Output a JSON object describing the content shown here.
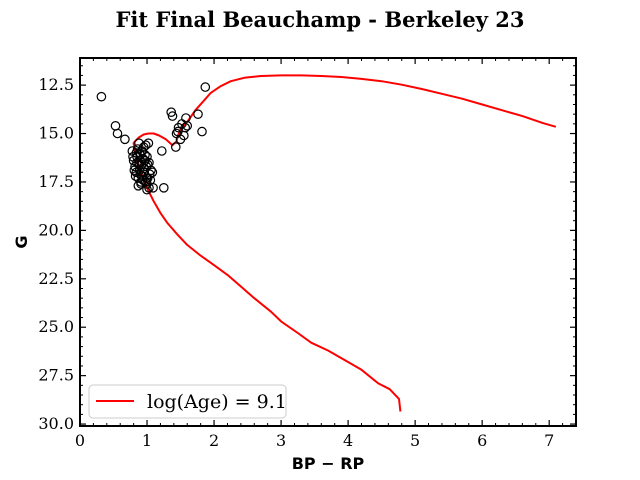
{
  "chart_data": {
    "type": "scatter",
    "title": "Fit Final Beauchamp - Berkeley 23",
    "xlabel": "BP − RP",
    "ylabel": "G",
    "xlim": [
      0,
      7.4
    ],
    "ylim": [
      30.1,
      11.1
    ],
    "y_inverted": true,
    "xticks": [
      0,
      1,
      2,
      3,
      4,
      5,
      6,
      7
    ],
    "xtick_labels": [
      "0",
      "1",
      "2",
      "3",
      "4",
      "5",
      "6",
      "7"
    ],
    "yticks": [
      12.5,
      15.0,
      17.5,
      20.0,
      22.5,
      25.0,
      27.5,
      30.0
    ],
    "ytick_labels": [
      "12.5",
      "15.0",
      "17.5",
      "20.0",
      "22.5",
      "25.0",
      "27.5",
      "30.0"
    ],
    "legend_position": "lower-left",
    "series": [
      {
        "name": "log(Age) = 9.1",
        "kind": "line",
        "color": "#ff0000",
        "x": [
          4.78,
          4.76,
          4.62,
          4.45,
          4.2,
          3.95,
          3.7,
          3.45,
          3.25,
          3.0,
          2.85,
          2.6,
          2.4,
          2.2,
          2.0,
          1.8,
          1.6,
          1.45,
          1.3,
          1.2,
          1.1,
          1.0,
          0.92,
          0.86,
          0.82,
          0.8,
          0.82,
          0.88,
          0.95,
          1.02,
          1.1,
          1.18,
          1.28,
          1.38,
          1.44,
          1.46,
          1.5,
          1.55,
          1.62,
          1.72,
          1.85,
          1.95,
          2.1,
          2.25,
          2.45,
          2.7,
          3.0,
          3.3,
          3.6,
          3.9,
          4.2,
          4.5,
          4.8,
          5.1,
          5.4,
          5.7,
          6.0,
          6.3,
          6.6,
          6.9,
          7.1
        ],
        "y": [
          29.35,
          28.7,
          28.2,
          27.9,
          27.2,
          26.7,
          26.2,
          25.8,
          25.3,
          24.7,
          24.2,
          23.5,
          22.9,
          22.3,
          21.8,
          21.3,
          20.75,
          20.2,
          19.6,
          19.1,
          18.5,
          17.8,
          17.1,
          16.4,
          15.8,
          15.5,
          15.4,
          15.2,
          15.05,
          15.0,
          15.0,
          15.1,
          15.3,
          15.6,
          15.4,
          15.1,
          14.8,
          14.6,
          14.3,
          13.8,
          13.3,
          12.9,
          12.55,
          12.3,
          12.12,
          12.03,
          12.0,
          12.0,
          12.03,
          12.08,
          12.18,
          12.3,
          12.48,
          12.7,
          12.95,
          13.2,
          13.5,
          13.8,
          14.1,
          14.45,
          14.65
        ]
      },
      {
        "name": "",
        "kind": "scatter",
        "marker": "open-circle",
        "color": "#000000",
        "x": [
          0.32,
          0.53,
          0.56,
          0.67,
          0.78,
          0.8,
          0.82,
          0.84,
          0.85,
          0.86,
          0.87,
          0.88,
          0.88,
          0.89,
          0.9,
          0.9,
          0.91,
          0.92,
          0.92,
          0.93,
          0.94,
          0.94,
          0.95,
          0.96,
          0.96,
          0.97,
          0.98,
          0.98,
          0.99,
          1.0,
          1.0,
          1.01,
          1.02,
          1.03,
          1.04,
          1.05,
          1.06,
          0.79,
          0.81,
          0.83,
          0.85,
          0.87,
          0.89,
          0.91,
          0.93,
          0.95,
          0.97,
          0.99,
          1.01,
          1.03,
          0.84,
          0.88,
          0.92,
          0.96,
          1.0,
          1.08,
          1.09,
          1.22,
          1.25,
          1.36,
          1.38,
          1.43,
          1.44,
          1.46,
          1.47,
          1.5,
          1.52,
          1.55,
          1.57,
          1.58,
          1.6,
          1.76,
          1.82,
          1.87
        ],
        "y": [
          13.1,
          14.6,
          15.0,
          15.3,
          15.9,
          16.4,
          16.7,
          17.0,
          16.2,
          15.8,
          17.3,
          16.5,
          15.5,
          16.9,
          17.1,
          16.1,
          17.6,
          15.9,
          16.6,
          17.2,
          16.3,
          17.4,
          15.7,
          16.8,
          17.0,
          16.4,
          17.5,
          15.6,
          16.7,
          16.2,
          17.9,
          17.3,
          15.5,
          16.5,
          17.1,
          17.4,
          16.9,
          16.2,
          16.9,
          17.2,
          16.5,
          17.7,
          16.0,
          17.5,
          15.9,
          17.0,
          16.1,
          17.3,
          16.6,
          17.8,
          16.0,
          16.6,
          17.2,
          16.4,
          17.6,
          17.0,
          17.8,
          15.9,
          17.8,
          13.9,
          14.1,
          15.7,
          15.0,
          14.9,
          14.7,
          15.3,
          14.5,
          15.1,
          14.7,
          14.2,
          14.6,
          14.0,
          14.9,
          12.6
        ]
      }
    ]
  }
}
